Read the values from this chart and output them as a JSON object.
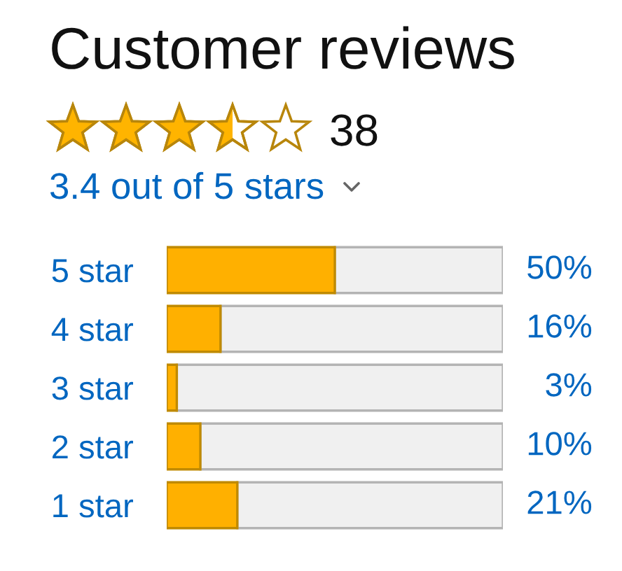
{
  "chart_data": {
    "type": "bar",
    "orientation": "horizontal",
    "stacked": true,
    "title": "Customer reviews",
    "annotations": [
      "38",
      "3.4 out of 5 stars"
    ],
    "categories": [
      "5 star",
      "4 star",
      "3 star",
      "2 star",
      "1 star"
    ],
    "series": [
      {
        "color": "#ffb000",
        "values": [
          50,
          16,
          3,
          10,
          21
        ],
        "value_labels": [
          "50%",
          "16%",
          "3%",
          "10%",
          "21%"
        ]
      },
      {
        "color": "#f0f0f0",
        "values": [
          50,
          84,
          97,
          90,
          79
        ]
      }
    ],
    "tick_labels": "y"
  }
}
